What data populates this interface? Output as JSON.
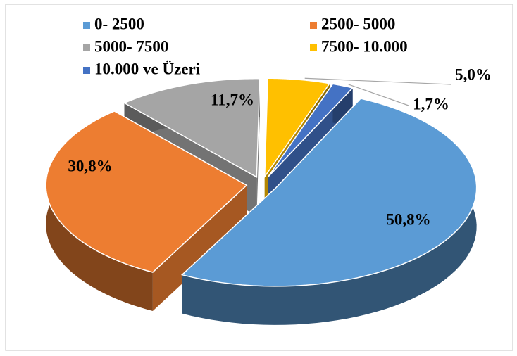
{
  "chart_data": {
    "type": "pie",
    "categories": [
      "0- 2500",
      "2500- 5000",
      "5000- 7500",
      "7500- 10.000",
      "10.000 ve Üzeri"
    ],
    "values": [
      50.8,
      30.8,
      11.7,
      5.0,
      1.7
    ],
    "value_labels": [
      "50,8%",
      "30,8%",
      "11,7%",
      "5,0%",
      "1,7%"
    ],
    "colors": [
      "#5b9bd5",
      "#ed7d31",
      "#a5a5a5",
      "#ffc000",
      "#4472c4"
    ]
  }
}
